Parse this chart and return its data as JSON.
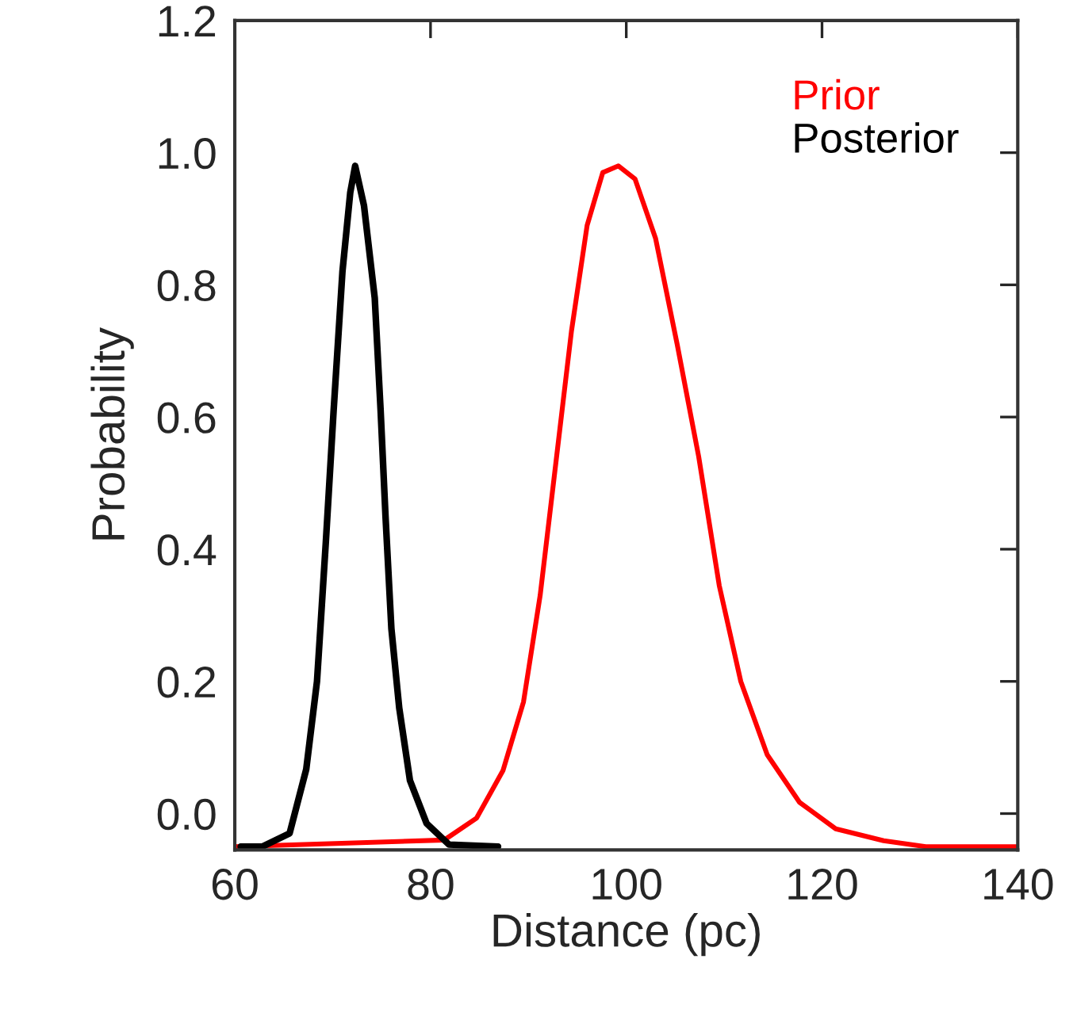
{
  "chart_data": {
    "type": "line",
    "xlabel": "Distance (pc)",
    "ylabel": "Probability",
    "xlim": [
      60,
      140
    ],
    "ylim": [
      -0.055,
      1.2
    ],
    "xticks": [
      60,
      80,
      100,
      120,
      140
    ],
    "yticks": [
      {
        "value": 0,
        "label": "0.0"
      },
      {
        "value": 0.2,
        "label": "0.2"
      },
      {
        "value": 0.4,
        "label": "0.4"
      },
      {
        "value": 0.6,
        "label": "0.6"
      },
      {
        "value": 0.8,
        "label": "0.8"
      },
      {
        "value": 1.0,
        "label": "1.0"
      },
      {
        "value": 1.2,
        "label": "1.2"
      }
    ],
    "legend": "top right",
    "marker": "none",
    "line_style": "solid",
    "series": [
      {
        "name": "Prior",
        "color": "#ff0000",
        "x": [
          60,
          81.4,
          84.7,
          87.4,
          89.5,
          91.2,
          92.8,
          94.4,
          96.0,
          97.6,
          99.2,
          100.9,
          103.0,
          105.2,
          107.4,
          109.5,
          111.7,
          114.4,
          117.7,
          121.4,
          126.3,
          130.6,
          140
        ],
        "values": [
          -0.05,
          -0.04,
          -0.007,
          0.065,
          0.169,
          0.33,
          0.53,
          0.73,
          0.89,
          0.97,
          0.98,
          0.96,
          0.87,
          0.71,
          0.54,
          0.345,
          0.2,
          0.089,
          0.017,
          -0.023,
          -0.041,
          -0.05,
          -0.05
        ]
      },
      {
        "name": "Posterior",
        "color": "#000000",
        "x": [
          60.6,
          62.8,
          65.6,
          67.3,
          68.4,
          69.3,
          70.1,
          71.0,
          71.8,
          72.3,
          73.2,
          74.3,
          74.9,
          75.4,
          76.0,
          76.8,
          77.9,
          79.6,
          81.9,
          86.9
        ],
        "values": [
          -0.05,
          -0.05,
          -0.03,
          0.067,
          0.2,
          0.41,
          0.61,
          0.82,
          0.94,
          0.98,
          0.92,
          0.78,
          0.61,
          0.45,
          0.28,
          0.16,
          0.05,
          -0.015,
          -0.047,
          -0.05
        ]
      }
    ]
  }
}
